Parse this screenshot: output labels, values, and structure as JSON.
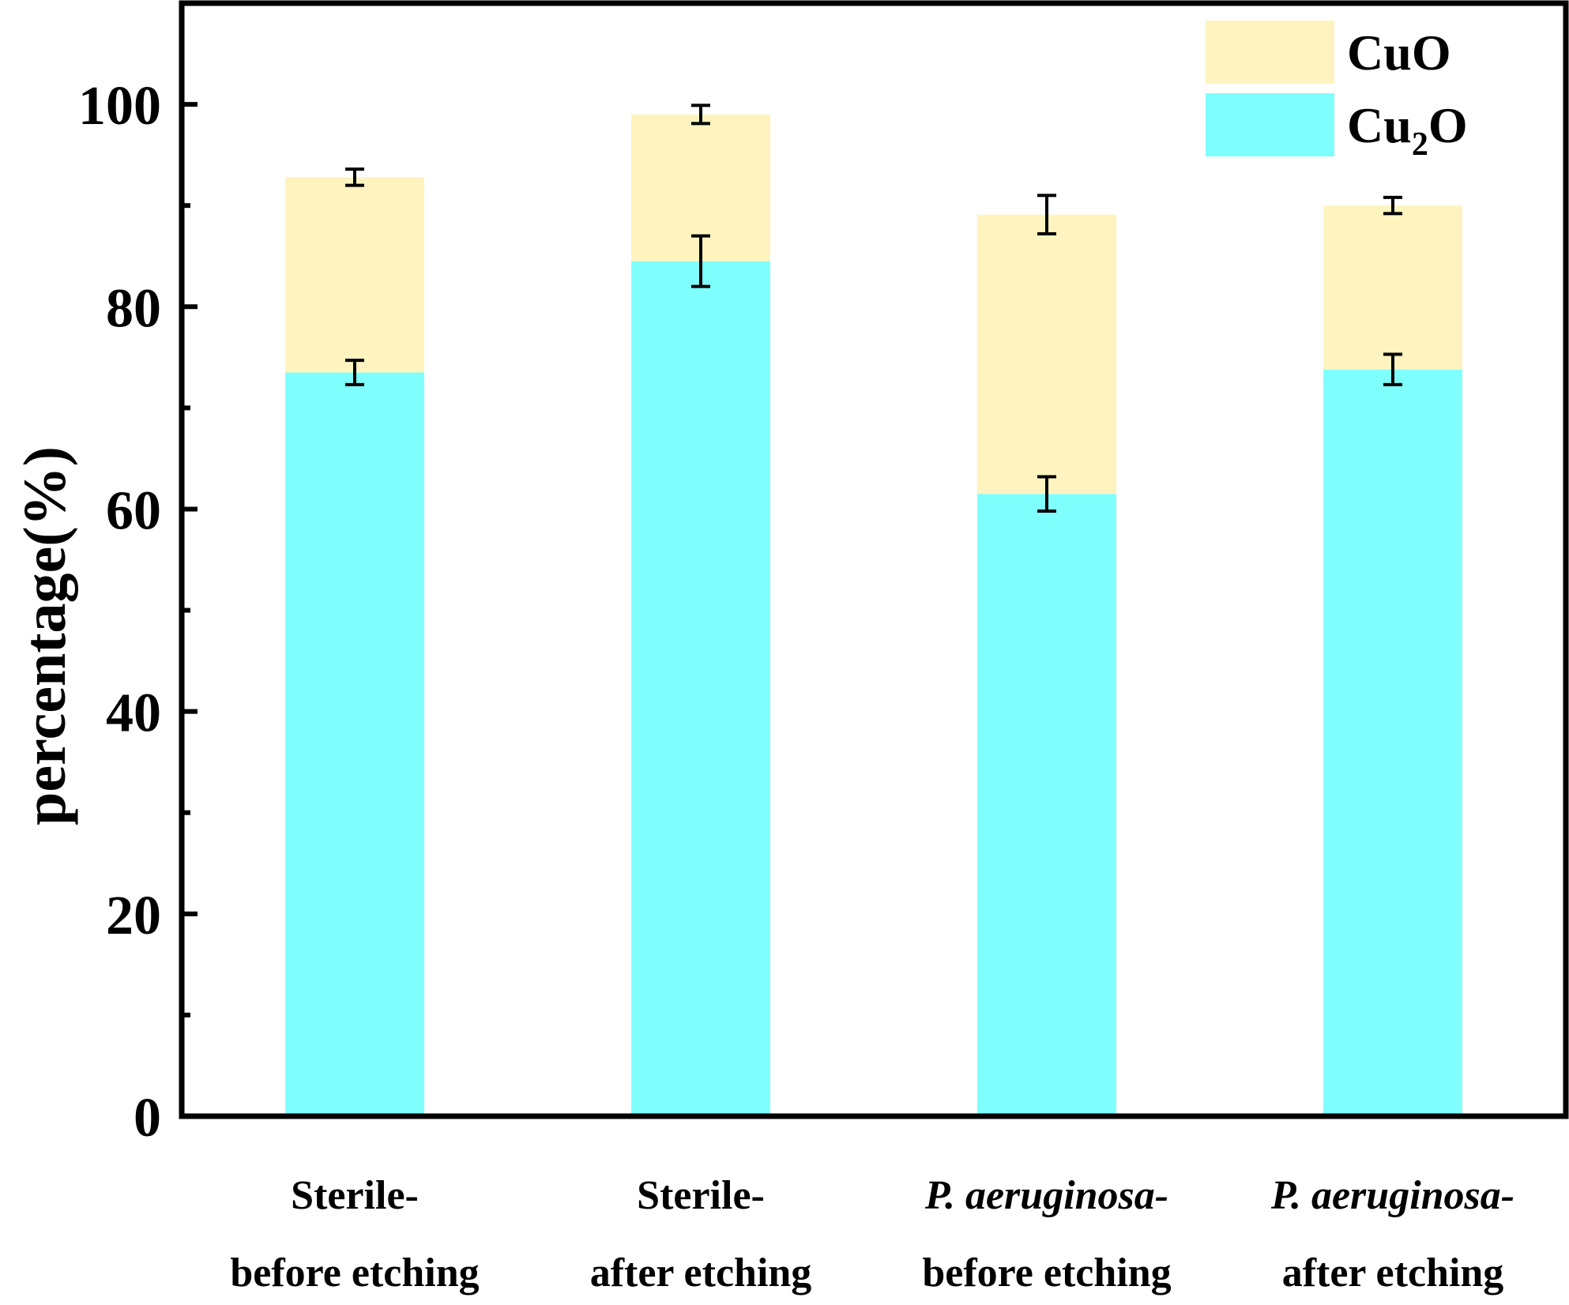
{
  "chart_data": {
    "type": "bar",
    "stacked": true,
    "title": "",
    "xlabel": "",
    "ylabel": "percentage(%)",
    "ylim": [
      0,
      110
    ],
    "yticks": [
      0,
      20,
      40,
      60,
      80,
      100
    ],
    "categories": [
      {
        "line1": "Sterile-",
        "line2": "before etching",
        "italic_line1": false
      },
      {
        "line1": "Sterile-",
        "line2": "after etching",
        "italic_line1": false
      },
      {
        "line1": "P. aeruginosa-",
        "line2": "before etching",
        "italic_line1": true
      },
      {
        "line1": "P. aeruginosa-",
        "line2": "after etching",
        "italic_line1": true
      }
    ],
    "series": [
      {
        "name": "Cu",
        "sub": "2",
        "name_after": "O",
        "color": "#80ffff",
        "values": [
          73.5,
          84.5,
          61.5,
          73.8
        ],
        "errors": [
          1.2,
          2.5,
          1.7,
          1.5
        ]
      },
      {
        "name": "CuO",
        "sub": "",
        "name_after": "",
        "color": "#fff4c0",
        "values": [
          19.3,
          14.5,
          27.6,
          16.2
        ],
        "errors": [
          0.8,
          0.9,
          1.9,
          0.8
        ]
      }
    ],
    "legend_position": "top-right"
  }
}
